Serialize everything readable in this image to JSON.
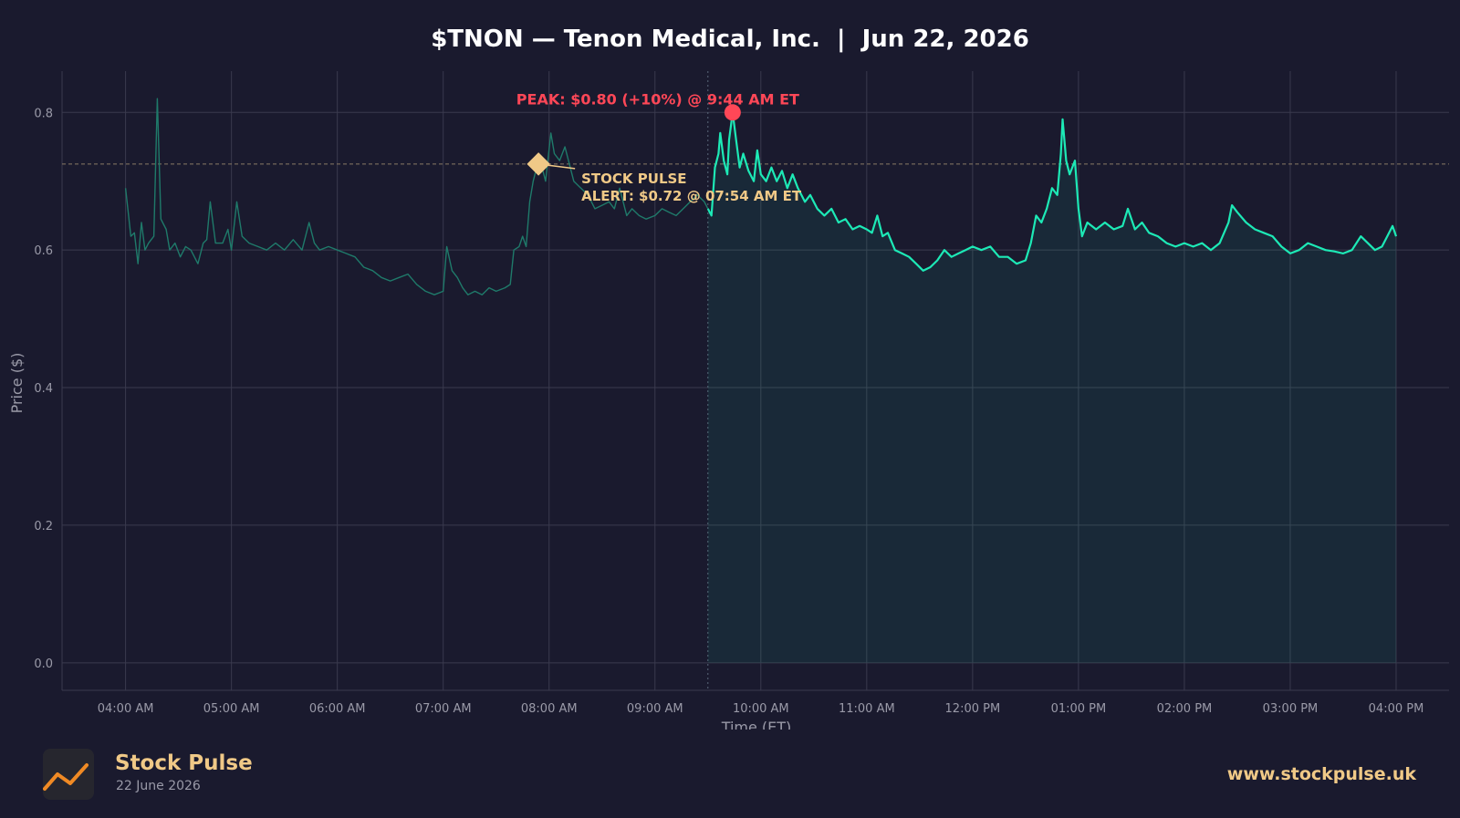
{
  "chart_data": {
    "type": "line",
    "title": "$TNON — Tenon Medical, Inc.  |  Jun 22, 2026",
    "xlabel": "Time (ET)",
    "ylabel": "Price ($)",
    "ylim": [
      -0.04,
      0.86
    ],
    "xlim": [
      "03:24 AM",
      "04:30 PM"
    ],
    "grid": true,
    "x_ticks": [
      "04:00 AM",
      "05:00 AM",
      "06:00 AM",
      "07:00 AM",
      "08:00 AM",
      "09:00 AM",
      "10:00 AM",
      "11:00 AM",
      "12:00 PM",
      "01:00 PM",
      "02:00 PM",
      "03:00 PM",
      "04:00 PM"
    ],
    "y_ticks": [
      "0.0",
      "0.2",
      "0.4",
      "0.6",
      "0.8"
    ],
    "session_markers": {
      "market_open": "09:30 AM",
      "market_close": "04:00 PM"
    },
    "alert_line_price": 0.725,
    "annotations": {
      "peak": {
        "text": "PEAK: $0.80 (+10%) @ 9:44 AM ET",
        "time": "09:44 AM",
        "price": 0.8,
        "color": "#ff4757"
      },
      "alert": {
        "line1": "STOCK PULSE",
        "line2": "ALERT: $0.72 @ 07:54 AM ET",
        "time": "07:54 AM",
        "price": 0.725,
        "color": "#f0c987"
      }
    },
    "series": [
      {
        "segment": "pre-market",
        "color": "#1f7a6a",
        "points": [
          [
            "04:00",
            0.69
          ],
          [
            "04:03",
            0.62
          ],
          [
            "04:05",
            0.625
          ],
          [
            "04:07",
            0.58
          ],
          [
            "04:09",
            0.64
          ],
          [
            "04:11",
            0.6
          ],
          [
            "04:13",
            0.61
          ],
          [
            "04:16",
            0.62
          ],
          [
            "04:18",
            0.82
          ],
          [
            "04:20",
            0.645
          ],
          [
            "04:23",
            0.63
          ],
          [
            "04:25",
            0.6
          ],
          [
            "04:28",
            0.61
          ],
          [
            "04:31",
            0.59
          ],
          [
            "04:34",
            0.605
          ],
          [
            "04:37",
            0.6
          ],
          [
            "04:41",
            0.58
          ],
          [
            "04:44",
            0.61
          ],
          [
            "04:46",
            0.615
          ],
          [
            "04:48",
            0.67
          ],
          [
            "04:51",
            0.61
          ],
          [
            "04:55",
            0.61
          ],
          [
            "04:58",
            0.63
          ],
          [
            "05:00",
            0.6
          ],
          [
            "05:03",
            0.67
          ],
          [
            "05:06",
            0.62
          ],
          [
            "05:10",
            0.61
          ],
          [
            "05:15",
            0.605
          ],
          [
            "05:20",
            0.6
          ],
          [
            "05:25",
            0.61
          ],
          [
            "05:30",
            0.6
          ],
          [
            "05:35",
            0.615
          ],
          [
            "05:40",
            0.6
          ],
          [
            "05:44",
            0.64
          ],
          [
            "05:47",
            0.61
          ],
          [
            "05:50",
            0.6
          ],
          [
            "05:55",
            0.605
          ],
          [
            "06:00",
            0.6
          ],
          [
            "06:05",
            0.595
          ],
          [
            "06:10",
            0.59
          ],
          [
            "06:15",
            0.575
          ],
          [
            "06:20",
            0.57
          ],
          [
            "06:25",
            0.56
          ],
          [
            "06:30",
            0.555
          ],
          [
            "06:35",
            0.56
          ],
          [
            "06:40",
            0.565
          ],
          [
            "06:45",
            0.55
          ],
          [
            "06:50",
            0.54
          ],
          [
            "06:55",
            0.535
          ],
          [
            "07:00",
            0.54
          ],
          [
            "07:02",
            0.605
          ],
          [
            "07:05",
            0.57
          ],
          [
            "07:08",
            0.56
          ],
          [
            "07:11",
            0.545
          ],
          [
            "07:14",
            0.535
          ],
          [
            "07:18",
            0.54
          ],
          [
            "07:22",
            0.535
          ],
          [
            "07:26",
            0.545
          ],
          [
            "07:30",
            0.54
          ],
          [
            "07:35",
            0.545
          ],
          [
            "07:38",
            0.55
          ],
          [
            "07:40",
            0.6
          ],
          [
            "07:43",
            0.605
          ],
          [
            "07:45",
            0.62
          ],
          [
            "07:47",
            0.605
          ],
          [
            "07:49",
            0.67
          ],
          [
            "07:51",
            0.7
          ],
          [
            "07:53",
            0.72
          ],
          [
            "07:55",
            0.73
          ],
          [
            "07:58",
            0.7
          ],
          [
            "08:01",
            0.77
          ],
          [
            "08:03",
            0.74
          ],
          [
            "08:06",
            0.73
          ],
          [
            "08:09",
            0.75
          ],
          [
            "08:12",
            0.72
          ],
          [
            "08:14",
            0.7
          ],
          [
            "08:18",
            0.69
          ],
          [
            "08:22",
            0.68
          ],
          [
            "08:26",
            0.66
          ],
          [
            "08:30",
            0.665
          ],
          [
            "08:34",
            0.67
          ],
          [
            "08:37",
            0.66
          ],
          [
            "08:40",
            0.69
          ],
          [
            "08:44",
            0.65
          ],
          [
            "08:47",
            0.66
          ],
          [
            "08:51",
            0.65
          ],
          [
            "08:55",
            0.645
          ],
          [
            "09:00",
            0.65
          ],
          [
            "09:04",
            0.66
          ],
          [
            "09:08",
            0.655
          ],
          [
            "09:12",
            0.65
          ],
          [
            "09:16",
            0.66
          ],
          [
            "09:20",
            0.67
          ],
          [
            "09:24",
            0.68
          ],
          [
            "09:28",
            0.67
          ],
          [
            "09:30",
            0.66
          ]
        ]
      },
      {
        "segment": "regular",
        "color": "#1de9b6",
        "points": [
          [
            "09:30",
            0.66
          ],
          [
            "09:32",
            0.65
          ],
          [
            "09:34",
            0.72
          ],
          [
            "09:36",
            0.74
          ],
          [
            "09:37",
            0.77
          ],
          [
            "09:39",
            0.73
          ],
          [
            "09:41",
            0.71
          ],
          [
            "09:42",
            0.76
          ],
          [
            "09:44",
            0.8
          ],
          [
            "09:46",
            0.76
          ],
          [
            "09:48",
            0.72
          ],
          [
            "09:50",
            0.74
          ],
          [
            "09:53",
            0.715
          ],
          [
            "09:56",
            0.7
          ],
          [
            "09:58",
            0.745
          ],
          [
            "10:00",
            0.71
          ],
          [
            "10:03",
            0.7
          ],
          [
            "10:06",
            0.72
          ],
          [
            "10:09",
            0.7
          ],
          [
            "10:12",
            0.715
          ],
          [
            "10:15",
            0.69
          ],
          [
            "10:18",
            0.71
          ],
          [
            "10:21",
            0.69
          ],
          [
            "10:25",
            0.67
          ],
          [
            "10:28",
            0.68
          ],
          [
            "10:32",
            0.66
          ],
          [
            "10:36",
            0.65
          ],
          [
            "10:40",
            0.66
          ],
          [
            "10:44",
            0.64
          ],
          [
            "10:48",
            0.645
          ],
          [
            "10:52",
            0.63
          ],
          [
            "10:56",
            0.635
          ],
          [
            "11:00",
            0.63
          ],
          [
            "11:03",
            0.625
          ],
          [
            "11:06",
            0.65
          ],
          [
            "11:09",
            0.62
          ],
          [
            "11:12",
            0.625
          ],
          [
            "11:16",
            0.6
          ],
          [
            "11:20",
            0.595
          ],
          [
            "11:24",
            0.59
          ],
          [
            "11:28",
            0.58
          ],
          [
            "11:32",
            0.57
          ],
          [
            "11:36",
            0.575
          ],
          [
            "11:40",
            0.585
          ],
          [
            "11:44",
            0.6
          ],
          [
            "11:48",
            0.59
          ],
          [
            "11:52",
            0.595
          ],
          [
            "11:56",
            0.6
          ],
          [
            "12:00",
            0.605
          ],
          [
            "12:05",
            0.6
          ],
          [
            "12:10",
            0.605
          ],
          [
            "12:15",
            0.59
          ],
          [
            "12:20",
            0.59
          ],
          [
            "12:25",
            0.58
          ],
          [
            "12:30",
            0.585
          ],
          [
            "12:33",
            0.61
          ],
          [
            "12:36",
            0.65
          ],
          [
            "12:39",
            0.64
          ],
          [
            "12:42",
            0.66
          ],
          [
            "12:45",
            0.69
          ],
          [
            "12:48",
            0.68
          ],
          [
            "12:50",
            0.74
          ],
          [
            "12:51",
            0.79
          ],
          [
            "12:53",
            0.73
          ],
          [
            "12:55",
            0.71
          ],
          [
            "12:58",
            0.73
          ],
          [
            "13:00",
            0.66
          ],
          [
            "13:02",
            0.62
          ],
          [
            "13:05",
            0.64
          ],
          [
            "13:10",
            0.63
          ],
          [
            "13:15",
            0.64
          ],
          [
            "13:20",
            0.63
          ],
          [
            "13:25",
            0.635
          ],
          [
            "13:28",
            0.66
          ],
          [
            "13:32",
            0.63
          ],
          [
            "13:36",
            0.64
          ],
          [
            "13:40",
            0.625
          ],
          [
            "13:45",
            0.62
          ],
          [
            "13:50",
            0.61
          ],
          [
            "13:55",
            0.605
          ],
          [
            "14:00",
            0.61
          ],
          [
            "14:05",
            0.605
          ],
          [
            "14:10",
            0.61
          ],
          [
            "14:15",
            0.6
          ],
          [
            "14:20",
            0.61
          ],
          [
            "14:25",
            0.64
          ],
          [
            "14:27",
            0.665
          ],
          [
            "14:30",
            0.655
          ],
          [
            "14:35",
            0.64
          ],
          [
            "14:40",
            0.63
          ],
          [
            "14:45",
            0.625
          ],
          [
            "14:50",
            0.62
          ],
          [
            "14:55",
            0.605
          ],
          [
            "15:00",
            0.595
          ],
          [
            "15:05",
            0.6
          ],
          [
            "15:10",
            0.61
          ],
          [
            "15:15",
            0.605
          ],
          [
            "15:20",
            0.6
          ],
          [
            "15:25",
            0.598
          ],
          [
            "15:30",
            0.595
          ],
          [
            "15:35",
            0.6
          ],
          [
            "15:40",
            0.62
          ],
          [
            "15:44",
            0.61
          ],
          [
            "15:48",
            0.6
          ],
          [
            "15:52",
            0.605
          ],
          [
            "15:55",
            0.62
          ],
          [
            "15:58",
            0.635
          ],
          [
            "16:00",
            0.62
          ]
        ]
      }
    ]
  },
  "branding": {
    "name": "Stock Pulse",
    "date": "22 June 2026",
    "url": "www.stockpulse.uk",
    "logo_icon": "trend-line-icon"
  },
  "colors": {
    "background": "#1a1a2e",
    "grid": "#3a3a4e",
    "accent": "#f0c987",
    "regular_line": "#1de9b6",
    "premarket_line": "#1f7a6a",
    "peak": "#ff4757"
  }
}
